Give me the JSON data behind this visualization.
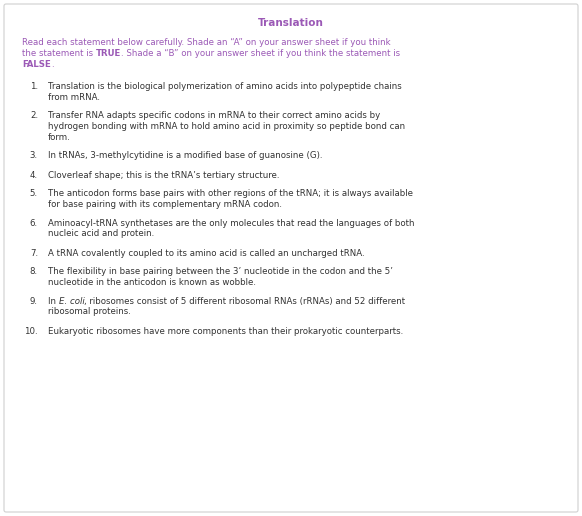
{
  "title": "Translation",
  "title_color": "#9b59b6",
  "title_fontsize": 7.5,
  "intro_color": "#9b59b6",
  "intro_fontsize": 6.2,
  "items": [
    {
      "num": "1.",
      "lines": [
        "Translation is the biological polymerization of amino acids into polypeptide chains",
        "from mRNA."
      ]
    },
    {
      "num": "2.",
      "lines": [
        "Transfer RNA adapts specific codons in mRNA to their correct amino acids by",
        "hydrogen bonding with mRNA to hold amino acid in proximity so peptide bond can",
        "form."
      ]
    },
    {
      "num": "3.",
      "lines": [
        "In tRNAs, 3-methylcytidine is a modified base of guanosine (G)."
      ]
    },
    {
      "num": "4.",
      "lines": [
        "Cloverleaf shape; this is the tRNA’s tertiary structure."
      ]
    },
    {
      "num": "5.",
      "lines": [
        "The anticodon forms base pairs with other regions of the tRNA; it is always available",
        "for base pairing with its complementary mRNA codon."
      ]
    },
    {
      "num": "6.",
      "lines": [
        "Aminoacyl-tRNA synthetases are the only molecules that read the languages of both",
        "nucleic acid and protein."
      ]
    },
    {
      "num": "7.",
      "lines": [
        "A tRNA covalently coupled to its amino acid is called an uncharged tRNA."
      ]
    },
    {
      "num": "8.",
      "lines": [
        "The flexibility in base pairing between the 3’ nucleotide in the codon and the 5’",
        "nucleotide in the anticodon is known as wobble."
      ]
    },
    {
      "num": "9.",
      "lines": [
        "In E. coli, ribosomes consist of 5 different ribosomal RNAs (rRNAs) and 52 different",
        "ribosomal proteins."
      ],
      "ecoli_line": 0
    },
    {
      "num": "10.",
      "lines": [
        "Eukaryotic ribosomes have more components than their prokaryotic counterparts."
      ]
    }
  ],
  "item_fontsize": 6.2,
  "item_color": "#333333",
  "background_color": "#ffffff",
  "border_color": "#d0d0d0",
  "fig_width": 5.82,
  "fig_height": 5.16,
  "dpi": 100
}
